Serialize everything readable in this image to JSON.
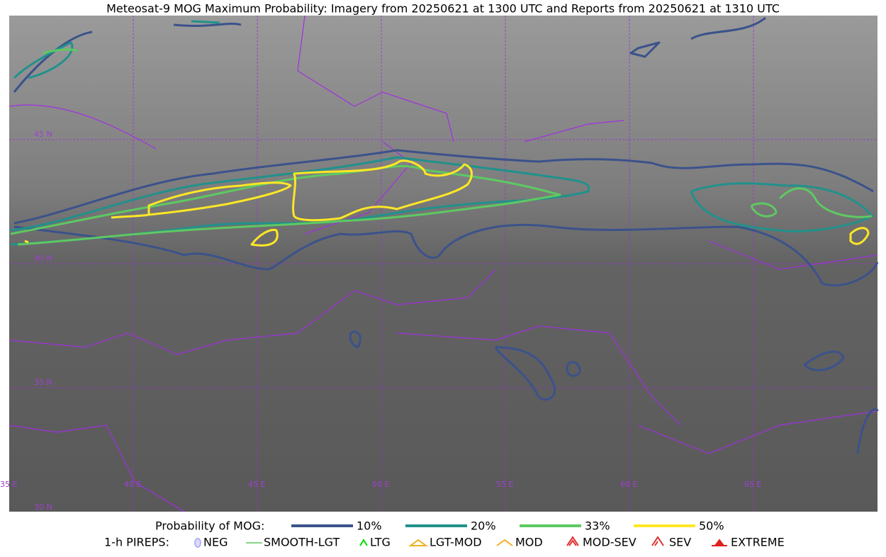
{
  "header": {
    "title": "Meteosat-9 MOG Maximum Probability: Imagery from 20250621 at 1300 UTC and Reports from 20250621 at 1310 UTC"
  },
  "map": {
    "lat_labels": [
      "45 N",
      "40 N",
      "35 N",
      "30 N"
    ],
    "lon_labels": [
      "35 E",
      "40 E",
      "45 E",
      "50 E",
      "55 E",
      "60 E",
      "65 E"
    ]
  },
  "legend": {
    "probability": {
      "label": "Probability of MOG:",
      "items": [
        {
          "label": "10%",
          "color": "#3b528b"
        },
        {
          "label": "20%",
          "color": "#21918c"
        },
        {
          "label": "33%",
          "color": "#5ec962"
        },
        {
          "label": "50%",
          "color": "#fde725"
        }
      ]
    },
    "pireps": {
      "label": "1-h PIREPS:",
      "items": [
        "NEG",
        "SMOOTH-LGT",
        "LTG",
        "LGT-MOD",
        "MOD",
        "MOD-SEV",
        "SEV",
        "EXTREME"
      ]
    }
  }
}
